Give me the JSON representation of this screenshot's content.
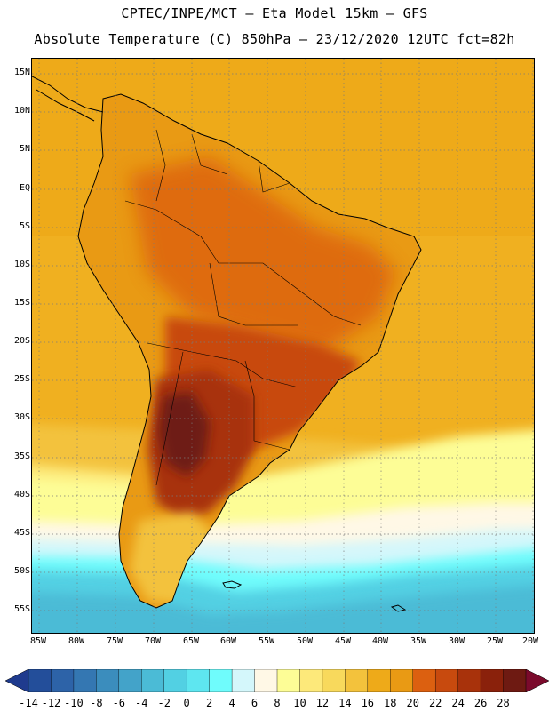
{
  "header": {
    "title_line1": "CPTEC/INPE/MCT —  Eta Model 15km — GFS",
    "title_line2": "Absolute Temperature (C) 850hPa — 23/12/2020 12UTC fct=82h"
  },
  "map": {
    "lat_labels": [
      "15N",
      "10N",
      "5N",
      "EQ",
      "5S",
      "10S",
      "15S",
      "20S",
      "25S",
      "30S",
      "35S",
      "40S",
      "45S",
      "50S",
      "55S"
    ],
    "lon_labels": [
      "85W",
      "80W",
      "75W",
      "70W",
      "65W",
      "60W",
      "55W",
      "50W",
      "45W",
      "40W",
      "35W",
      "30W",
      "25W",
      "20W"
    ],
    "zones": [
      {
        "name": "southern-cold-water",
        "temp_c": 2
      },
      {
        "name": "southern-cool-ocean",
        "temp_c": 8
      },
      {
        "name": "mid-ocean",
        "temp_c": 14
      },
      {
        "name": "tropical-ocean",
        "temp_c": 18
      },
      {
        "name": "continent-warm",
        "temp_c": 20
      },
      {
        "name": "central-hot",
        "temp_c": 24
      },
      {
        "name": "argentina-hot-core",
        "temp_c": 28
      }
    ]
  },
  "colorbar": {
    "labels": [
      "-14",
      "-12",
      "-10",
      "-8",
      "-6",
      "-4",
      "-2",
      "0",
      "2",
      "4",
      "6",
      "8",
      "10",
      "12",
      "14",
      "16",
      "18",
      "20",
      "22",
      "24",
      "26",
      "28"
    ],
    "colors": [
      "#1f3b8e",
      "#234e9a",
      "#2d63a8",
      "#3477b2",
      "#3b8dbd",
      "#43a3c9",
      "#4bbbd6",
      "#52d0e3",
      "#5ee6f0",
      "#6ffcfc",
      "#d4f7fb",
      "#fff8e6",
      "#fdfd96",
      "#fde97a",
      "#f8d95c",
      "#f3c23c",
      "#eeaa19",
      "#e99a14",
      "#dc6010",
      "#c84a0e",
      "#a8320b",
      "#8a210b",
      "#6e1a12",
      "#7b0a2c"
    ]
  }
}
